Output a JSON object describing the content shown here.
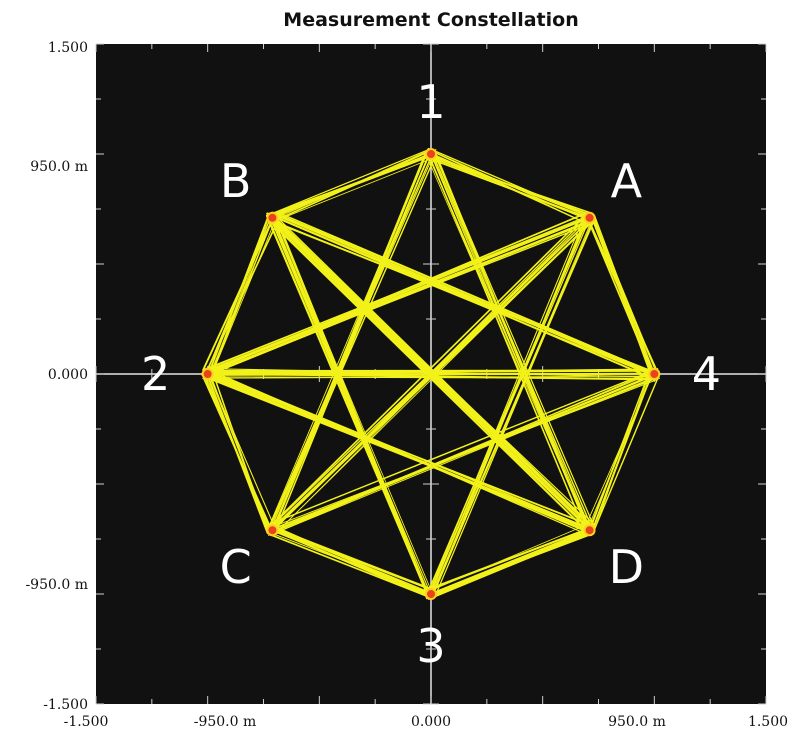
{
  "chart_data": {
    "type": "scatter",
    "title": "Measurement Constellation",
    "xlabel": "",
    "ylabel": "",
    "xlim": [
      -1.5,
      1.5
    ],
    "ylim": [
      -1.5,
      1.5
    ],
    "x_ticks": [
      "-1.500",
      "-950.0 m",
      "0.000",
      "950.0 m",
      "1.500"
    ],
    "y_ticks": [
      "1.500",
      "950.0 m",
      "0.000",
      "-950.0 m",
      "-1.500"
    ],
    "grid": true,
    "background": "#111111",
    "trajectory_color": "#f2f21a",
    "marker_color": "#e8431a",
    "points": [
      {
        "label": "1",
        "x": 0.0,
        "y": 1.0
      },
      {
        "label": "A",
        "x": 0.71,
        "y": 0.71
      },
      {
        "label": "4",
        "x": 1.0,
        "y": 0.0
      },
      {
        "label": "D",
        "x": 0.71,
        "y": -0.71
      },
      {
        "label": "3",
        "x": 0.0,
        "y": -1.0
      },
      {
        "label": "C",
        "x": -0.71,
        "y": -0.71
      },
      {
        "label": "2",
        "x": -1.0,
        "y": 0.0
      },
      {
        "label": "B",
        "x": -0.71,
        "y": 0.71
      }
    ],
    "transitions": [
      [
        "1",
        "A"
      ],
      [
        "A",
        "4"
      ],
      [
        "4",
        "D"
      ],
      [
        "D",
        "3"
      ],
      [
        "3",
        "C"
      ],
      [
        "C",
        "2"
      ],
      [
        "2",
        "B"
      ],
      [
        "B",
        "1"
      ],
      [
        "1",
        "C"
      ],
      [
        "1",
        "D"
      ],
      [
        "B",
        "4"
      ],
      [
        "B",
        "3"
      ],
      [
        "2",
        "A"
      ],
      [
        "2",
        "D"
      ],
      [
        "C",
        "A"
      ],
      [
        "C",
        "4"
      ],
      [
        "3",
        "A"
      ],
      [
        "D",
        "B"
      ],
      [
        "4",
        "2"
      ]
    ]
  }
}
